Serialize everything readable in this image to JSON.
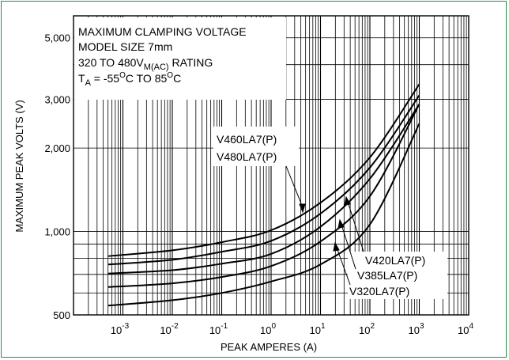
{
  "chart_data": {
    "type": "line",
    "title_lines": [
      "MAXIMUM CLAMPING VOLTAGE",
      "MODEL SIZE 7mm"
    ],
    "rating": {
      "prefix": "320 TO 480V",
      "subscript": "M(AC)",
      "suffix": " RATING"
    },
    "temperature": {
      "T": "T",
      "sub": "A",
      "mid": " = -55",
      "deg1": "O",
      "C_TO": "C TO 85",
      "deg2": "O",
      "end": "C"
    },
    "xlabel": "PEAK AMPERES (A)",
    "ylabel": "MAXIMUM PEAK VOLTS (V)",
    "x_scale": "log",
    "y_scale": "log",
    "xlim": [
      0.0001,
      10000
    ],
    "ylim": [
      500,
      6000
    ],
    "x_ticks": [
      {
        "value": 0.001,
        "base": "10",
        "exp": "-3"
      },
      {
        "value": 0.01,
        "base": "10",
        "exp": "-2"
      },
      {
        "value": 0.1,
        "base": "10",
        "exp": "-1"
      },
      {
        "value": 1,
        "base": "10",
        "exp": "0"
      },
      {
        "value": 10,
        "base": "10",
        "exp": "1"
      },
      {
        "value": 100,
        "base": "10",
        "exp": "2"
      },
      {
        "value": 1000,
        "base": "10",
        "exp": "3"
      },
      {
        "value": 10000,
        "base": "10",
        "exp": "4"
      }
    ],
    "y_ticks": [
      {
        "value": 500,
        "label": "500"
      },
      {
        "value": 1000,
        "label": "1,000"
      },
      {
        "value": 2000,
        "label": "2,000"
      },
      {
        "value": 3000,
        "label": "3,000"
      },
      {
        "value": 5000,
        "label": "5,000"
      }
    ],
    "grid": true,
    "series": [
      {
        "name": "V480LA7(P)",
        "x": [
          0.0005,
          0.01,
          0.1,
          1,
          10,
          100,
          1000
        ],
        "y": [
          815,
          855,
          915,
          1010,
          1270,
          1850,
          3400
        ]
      },
      {
        "name": "V460LA7(P)",
        "x": [
          0.0005,
          0.01,
          0.1,
          1,
          10,
          100,
          1000
        ],
        "y": [
          760,
          790,
          845,
          925,
          1160,
          1700,
          3100
        ]
      },
      {
        "name": "V420LA7(P)",
        "x": [
          0.0005,
          0.01,
          0.1,
          1,
          10,
          100,
          1000
        ],
        "y": [
          705,
          725,
          765,
          830,
          1040,
          1550,
          2880
        ]
      },
      {
        "name": "V385LA7(P)",
        "x": [
          0.0005,
          0.01,
          0.1,
          1,
          10,
          100,
          1000
        ],
        "y": [
          630,
          650,
          685,
          750,
          920,
          1340,
          2880
        ]
      },
      {
        "name": "V320LA7(P)",
        "x": [
          0.0005,
          0.01,
          0.1,
          1,
          10,
          100,
          1000
        ],
        "y": [
          540,
          565,
          600,
          660,
          760,
          1060,
          2450
        ]
      }
    ],
    "labels": {
      "top": [
        "V460LA7(P)",
        "V480LA7(P)"
      ],
      "bottom": [
        "V420LA7(P)",
        "V385LA7(P)",
        "V320LA7(P)"
      ]
    },
    "colors": {
      "frame": "#2e8a4a",
      "line": "#000000"
    }
  }
}
